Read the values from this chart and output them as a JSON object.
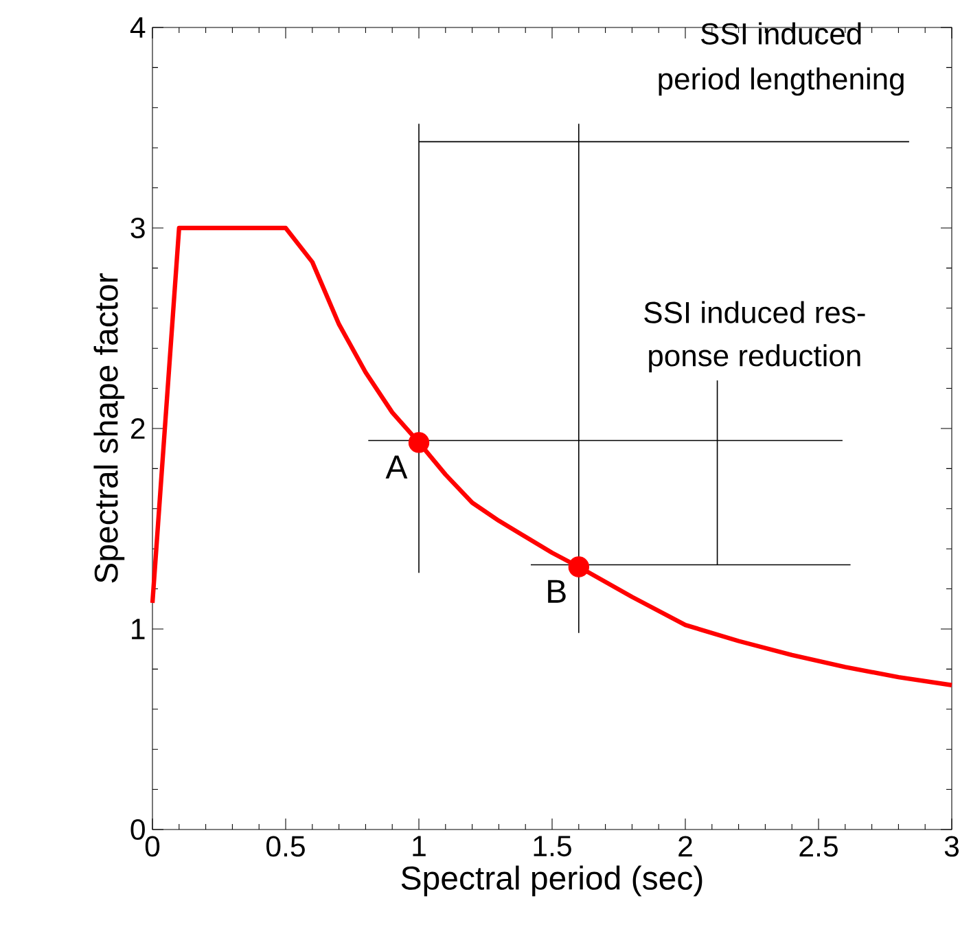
{
  "chart_data": {
    "type": "line",
    "xlabel": "Spectral period (sec)",
    "ylabel": "Spectral shape factor",
    "xlim": [
      0,
      3
    ],
    "ylim": [
      0,
      4
    ],
    "xticks": [
      0,
      0.5,
      1,
      1.5,
      2,
      2.5,
      3
    ],
    "yticks": [
      0,
      1,
      2,
      3,
      4
    ],
    "grid": false,
    "series": [
      {
        "color": "#ff0000",
        "x": [
          0,
          0.1,
          0.5,
          0.6,
          0.7,
          0.8,
          0.9,
          1.0,
          1.1,
          1.2,
          1.3,
          1.4,
          1.5,
          1.6,
          1.8,
          2.0,
          2.2,
          2.4,
          2.6,
          2.8,
          3.0
        ],
        "values": [
          1.13,
          3.0,
          3.0,
          2.83,
          2.52,
          2.28,
          2.08,
          1.93,
          1.77,
          1.63,
          1.54,
          1.46,
          1.38,
          1.31,
          1.16,
          1.02,
          0.94,
          0.87,
          0.81,
          0.76,
          0.72
        ]
      },
      {
        "type": "scatter",
        "color": "#ff0000",
        "marker": "circle",
        "x": [
          1.0,
          1.6
        ],
        "values": [
          1.93,
          1.31
        ]
      },
      {
        "type": "line",
        "color": "#000000",
        "x": [
          1,
          1
        ],
        "values": [
          1.28,
          3.52
        ]
      },
      {
        "type": "line",
        "color": "#000000",
        "x": [
          1.6,
          1.6
        ],
        "values": [
          0.98,
          3.52
        ]
      },
      {
        "type": "line",
        "color": "#000000",
        "x": [
          1,
          2.84
        ],
        "values": [
          3.43,
          3.43
        ]
      },
      {
        "type": "line",
        "color": "#000000",
        "x": [
          0.81,
          2.59
        ],
        "values": [
          1.94,
          1.94
        ]
      },
      {
        "type": "line",
        "color": "#000000",
        "x": [
          1.42,
          2.62
        ],
        "values": [
          1.32,
          1.32
        ]
      },
      {
        "type": "line",
        "color": "#000000",
        "x": [
          2.12,
          2.12
        ],
        "values": [
          2.24,
          1.32
        ]
      }
    ],
    "annotations": [
      {
        "text": "A",
        "x": 1.0,
        "y": 1.93
      },
      {
        "text": "B",
        "x": 1.6,
        "y": 1.31
      },
      "SSI induced",
      "period lengthening",
      "SSI induced res-",
      "ponse reduction"
    ]
  }
}
